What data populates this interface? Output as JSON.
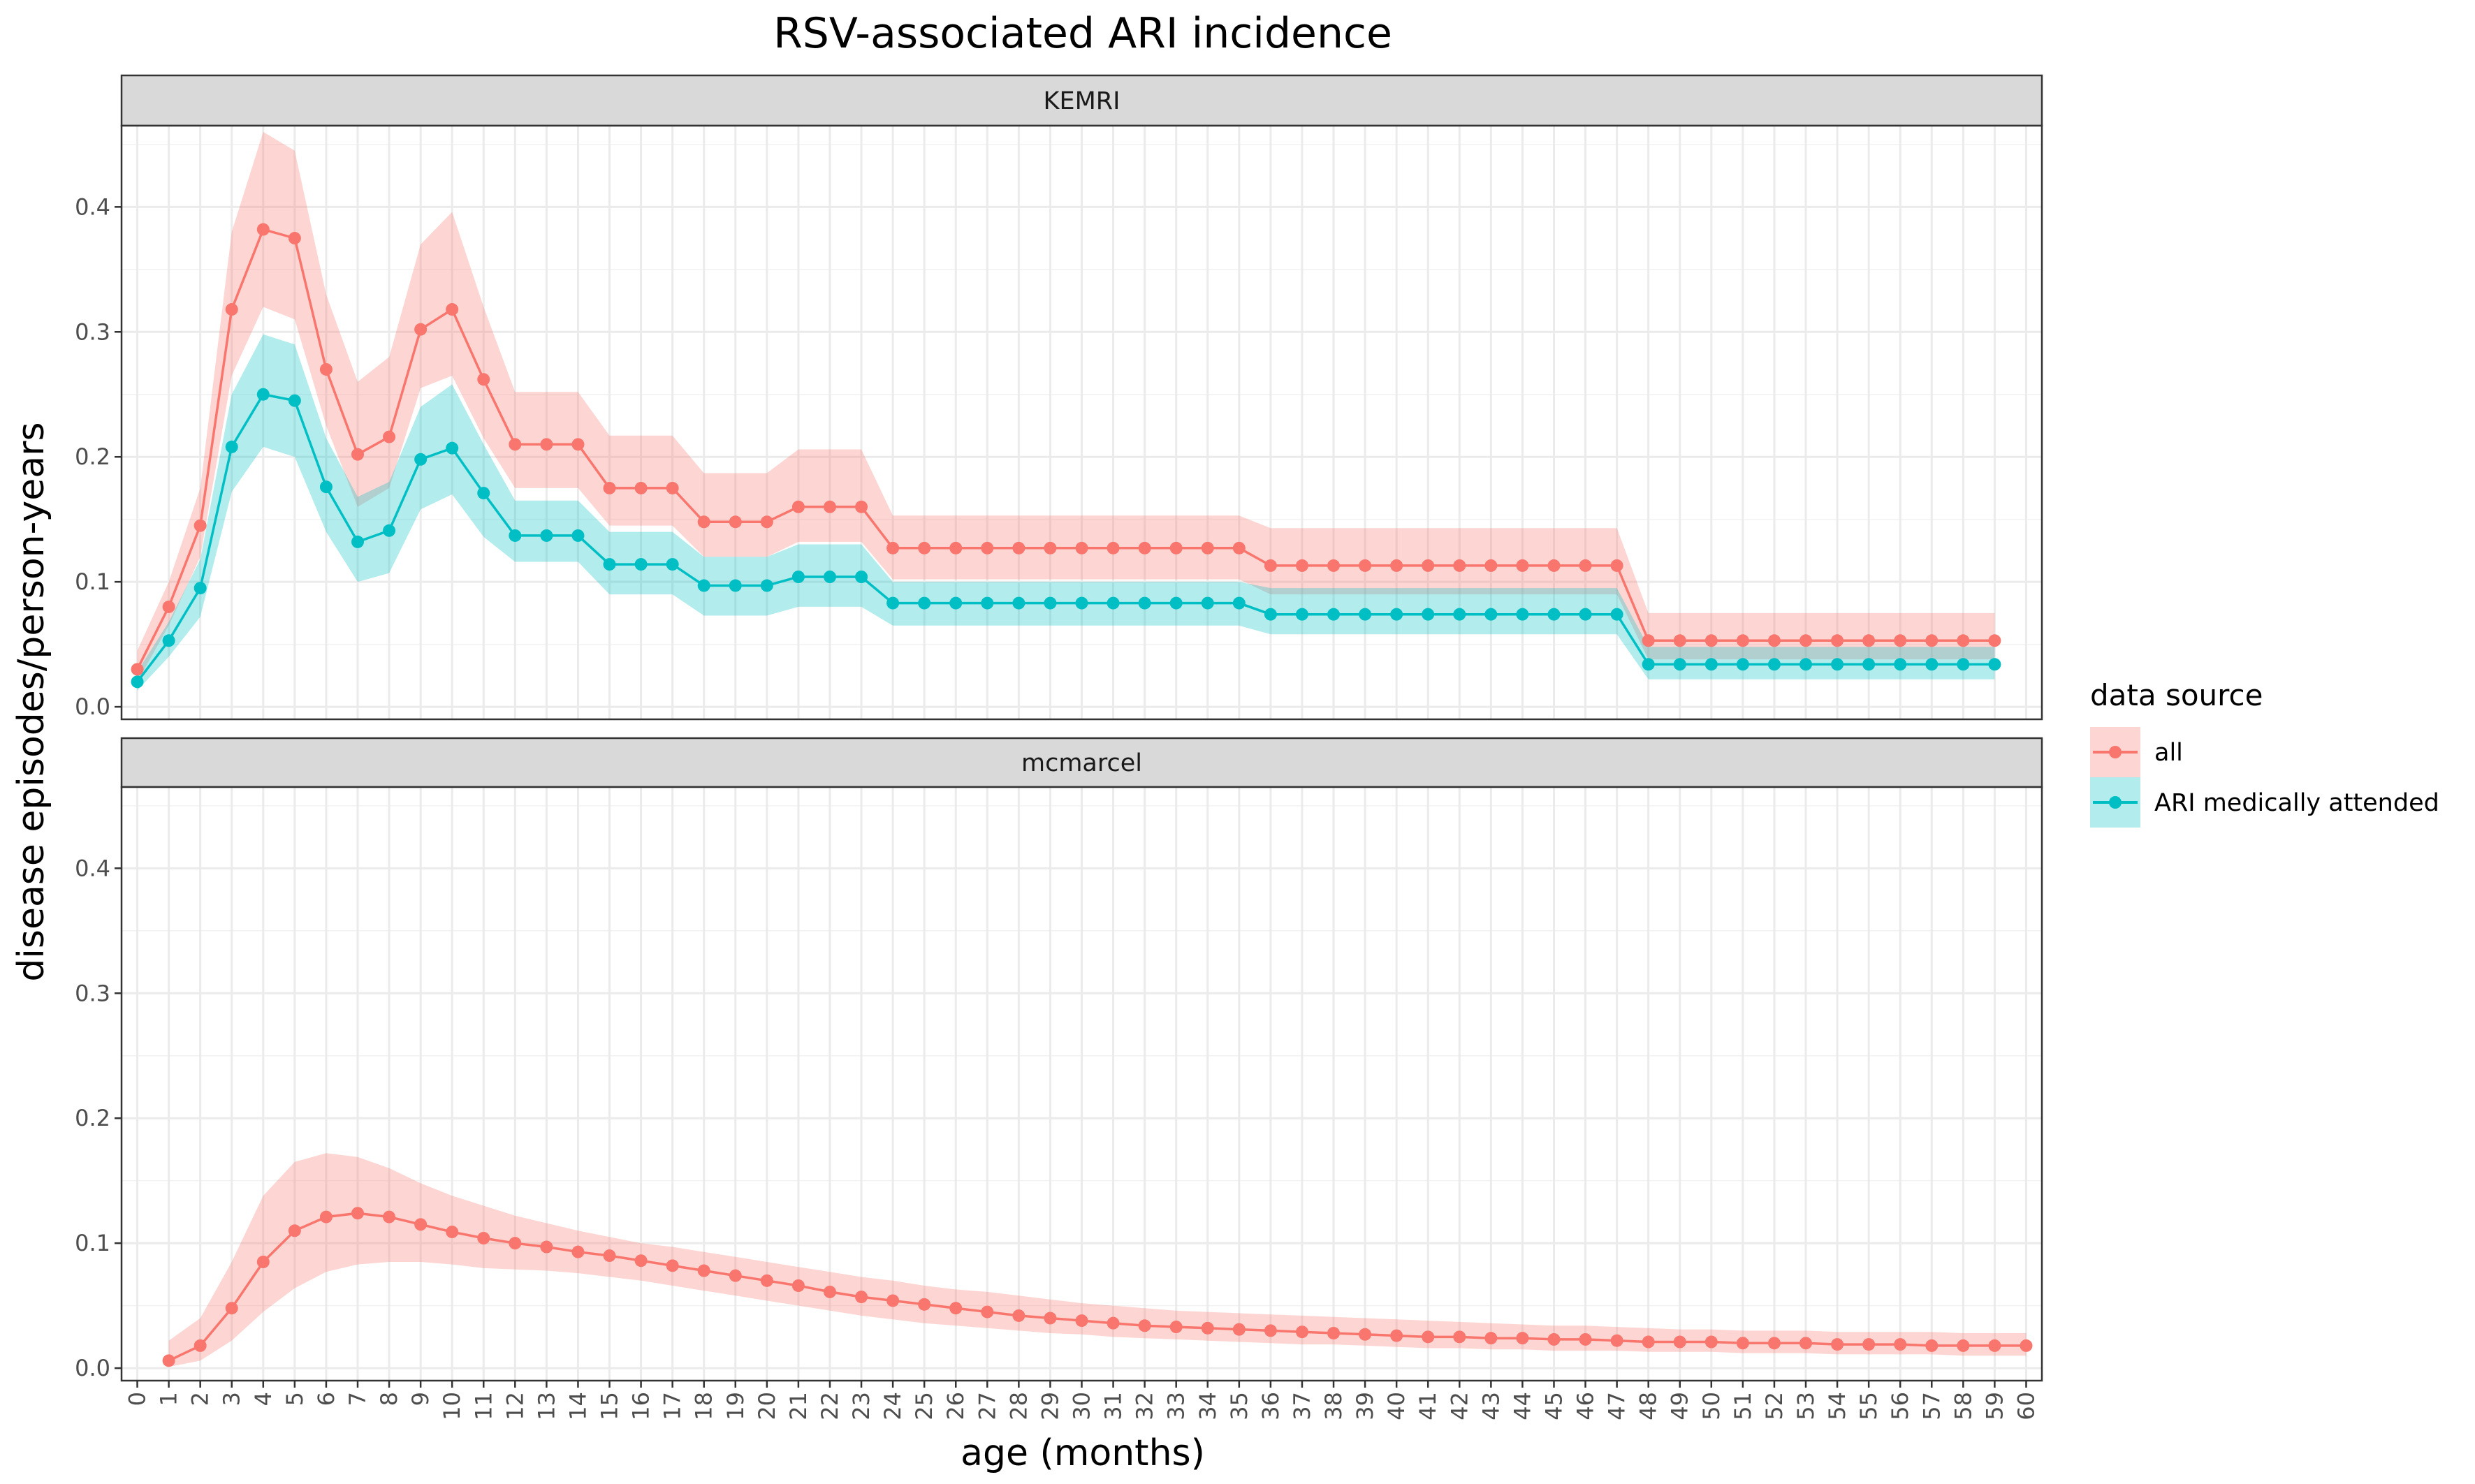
{
  "chart_data": {
    "type": "line",
    "title": "RSV-associated ARI incidence",
    "xlabel": "age (months)",
    "ylabel": "disease episodes/person-years",
    "x_ticks": [
      0,
      1,
      2,
      3,
      4,
      5,
      6,
      7,
      8,
      9,
      10,
      11,
      12,
      13,
      14,
      15,
      16,
      17,
      18,
      19,
      20,
      21,
      22,
      23,
      24,
      25,
      26,
      27,
      28,
      29,
      30,
      31,
      32,
      33,
      34,
      35,
      36,
      37,
      38,
      39,
      40,
      41,
      42,
      43,
      44,
      45,
      46,
      47,
      48,
      49,
      50,
      51,
      52,
      53,
      54,
      55,
      56,
      57,
      58,
      59,
      60
    ],
    "y_ticks": [
      0.0,
      0.1,
      0.2,
      0.3,
      0.4
    ],
    "y_tick_labels": [
      "0.0",
      "0.1",
      "0.2",
      "0.3",
      "0.4"
    ],
    "ylim": [
      -0.01,
      0.465
    ],
    "xlim": [
      -0.5,
      60.5
    ],
    "grid": true,
    "legend": {
      "title": "data source",
      "position": "right",
      "entries": [
        {
          "label": "all",
          "color": "#F8766D"
        },
        {
          "label": "ARI medically attended",
          "color": "#00BFC4"
        }
      ]
    },
    "panels": [
      {
        "label": "KEMRI",
        "series": [
          {
            "name": "all",
            "color": "#F8766D",
            "x": [
              0,
              1,
              2,
              3,
              4,
              5,
              6,
              7,
              8,
              9,
              10,
              11,
              12,
              13,
              14,
              15,
              16,
              17,
              18,
              19,
              20,
              21,
              22,
              23,
              24,
              25,
              26,
              27,
              28,
              29,
              30,
              31,
              32,
              33,
              34,
              35,
              36,
              37,
              38,
              39,
              40,
              41,
              42,
              43,
              44,
              45,
              46,
              47,
              48,
              49,
              50,
              51,
              52,
              53,
              54,
              55,
              56,
              57,
              58,
              59
            ],
            "values": [
              0.03,
              0.08,
              0.145,
              0.318,
              0.382,
              0.375,
              0.27,
              0.202,
              0.216,
              0.302,
              0.318,
              0.262,
              0.21,
              0.21,
              0.21,
              0.175,
              0.175,
              0.175,
              0.148,
              0.148,
              0.148,
              0.16,
              0.16,
              0.16,
              0.127,
              0.127,
              0.127,
              0.127,
              0.127,
              0.127,
              0.127,
              0.127,
              0.127,
              0.127,
              0.127,
              0.127,
              0.113,
              0.113,
              0.113,
              0.113,
              0.113,
              0.113,
              0.113,
              0.113,
              0.113,
              0.113,
              0.113,
              0.113,
              0.053,
              0.053,
              0.053,
              0.053,
              0.053,
              0.053,
              0.053,
              0.053,
              0.053,
              0.053,
              0.053,
              0.053
            ],
            "lower": [
              0.02,
              0.065,
              0.12,
              0.265,
              0.32,
              0.31,
              0.225,
              0.16,
              0.175,
              0.255,
              0.265,
              0.215,
              0.175,
              0.175,
              0.175,
              0.145,
              0.145,
              0.145,
              0.12,
              0.12,
              0.12,
              0.132,
              0.132,
              0.132,
              0.102,
              0.102,
              0.102,
              0.102,
              0.102,
              0.102,
              0.102,
              0.102,
              0.102,
              0.102,
              0.102,
              0.102,
              0.09,
              0.09,
              0.09,
              0.09,
              0.09,
              0.09,
              0.09,
              0.09,
              0.09,
              0.09,
              0.09,
              0.09,
              0.038,
              0.038,
              0.038,
              0.038,
              0.038,
              0.038,
              0.038,
              0.038,
              0.038,
              0.038,
              0.038,
              0.038
            ],
            "upper": [
              0.045,
              0.1,
              0.175,
              0.38,
              0.46,
              0.445,
              0.33,
              0.26,
              0.28,
              0.37,
              0.396,
              0.32,
              0.252,
              0.252,
              0.252,
              0.217,
              0.217,
              0.217,
              0.187,
              0.187,
              0.187,
              0.206,
              0.206,
              0.206,
              0.153,
              0.153,
              0.153,
              0.153,
              0.153,
              0.153,
              0.153,
              0.153,
              0.153,
              0.153,
              0.153,
              0.153,
              0.143,
              0.143,
              0.143,
              0.143,
              0.143,
              0.143,
              0.143,
              0.143,
              0.143,
              0.143,
              0.143,
              0.143,
              0.075,
              0.075,
              0.075,
              0.075,
              0.075,
              0.075,
              0.075,
              0.075,
              0.075,
              0.075,
              0.075,
              0.075
            ]
          },
          {
            "name": "ARI medically attended",
            "color": "#00BFC4",
            "x": [
              0,
              1,
              2,
              3,
              4,
              5,
              6,
              7,
              8,
              9,
              10,
              11,
              12,
              13,
              14,
              15,
              16,
              17,
              18,
              19,
              20,
              21,
              22,
              23,
              24,
              25,
              26,
              27,
              28,
              29,
              30,
              31,
              32,
              33,
              34,
              35,
              36,
              37,
              38,
              39,
              40,
              41,
              42,
              43,
              44,
              45,
              46,
              47,
              48,
              49,
              50,
              51,
              52,
              53,
              54,
              55,
              56,
              57,
              58,
              59
            ],
            "values": [
              0.02,
              0.053,
              0.095,
              0.208,
              0.25,
              0.245,
              0.176,
              0.132,
              0.141,
              0.198,
              0.207,
              0.171,
              0.137,
              0.137,
              0.137,
              0.114,
              0.114,
              0.114,
              0.097,
              0.097,
              0.097,
              0.104,
              0.104,
              0.104,
              0.083,
              0.083,
              0.083,
              0.083,
              0.083,
              0.083,
              0.083,
              0.083,
              0.083,
              0.083,
              0.083,
              0.083,
              0.074,
              0.074,
              0.074,
              0.074,
              0.074,
              0.074,
              0.074,
              0.074,
              0.074,
              0.074,
              0.074,
              0.074,
              0.034,
              0.034,
              0.034,
              0.034,
              0.034,
              0.034,
              0.034,
              0.034,
              0.034,
              0.034,
              0.034,
              0.034
            ],
            "lower": [
              0.013,
              0.04,
              0.072,
              0.172,
              0.208,
              0.2,
              0.14,
              0.1,
              0.107,
              0.158,
              0.17,
              0.136,
              0.116,
              0.116,
              0.116,
              0.09,
              0.09,
              0.09,
              0.073,
              0.073,
              0.073,
              0.08,
              0.08,
              0.08,
              0.065,
              0.065,
              0.065,
              0.065,
              0.065,
              0.065,
              0.065,
              0.065,
              0.065,
              0.065,
              0.065,
              0.065,
              0.058,
              0.058,
              0.058,
              0.058,
              0.058,
              0.058,
              0.058,
              0.058,
              0.058,
              0.058,
              0.058,
              0.058,
              0.022,
              0.022,
              0.022,
              0.022,
              0.022,
              0.022,
              0.022,
              0.022,
              0.022,
              0.022,
              0.022,
              0.022
            ],
            "upper": [
              0.028,
              0.068,
              0.118,
              0.25,
              0.298,
              0.29,
              0.215,
              0.168,
              0.18,
              0.24,
              0.258,
              0.21,
              0.165,
              0.165,
              0.165,
              0.14,
              0.14,
              0.14,
              0.12,
              0.12,
              0.12,
              0.13,
              0.13,
              0.13,
              0.1,
              0.1,
              0.1,
              0.1,
              0.1,
              0.1,
              0.1,
              0.1,
              0.1,
              0.1,
              0.1,
              0.1,
              0.095,
              0.095,
              0.095,
              0.095,
              0.095,
              0.095,
              0.095,
              0.095,
              0.095,
              0.095,
              0.095,
              0.095,
              0.048,
              0.048,
              0.048,
              0.048,
              0.048,
              0.048,
              0.048,
              0.048,
              0.048,
              0.048,
              0.048,
              0.048
            ]
          }
        ]
      },
      {
        "label": "mcmarcel",
        "series": [
          {
            "name": "all",
            "color": "#F8766D",
            "x": [
              1,
              2,
              3,
              4,
              5,
              6,
              7,
              8,
              9,
              10,
              11,
              12,
              13,
              14,
              15,
              16,
              17,
              18,
              19,
              20,
              21,
              22,
              23,
              24,
              25,
              26,
              27,
              28,
              29,
              30,
              31,
              32,
              33,
              34,
              35,
              36,
              37,
              38,
              39,
              40,
              41,
              42,
              43,
              44,
              45,
              46,
              47,
              48,
              49,
              50,
              51,
              52,
              53,
              54,
              55,
              56,
              57,
              58,
              59,
              60
            ],
            "values": [
              0.006,
              0.018,
              0.048,
              0.085,
              0.11,
              0.121,
              0.124,
              0.121,
              0.115,
              0.109,
              0.104,
              0.1,
              0.097,
              0.093,
              0.09,
              0.086,
              0.082,
              0.078,
              0.074,
              0.07,
              0.066,
              0.061,
              0.057,
              0.054,
              0.051,
              0.048,
              0.045,
              0.042,
              0.04,
              0.038,
              0.036,
              0.034,
              0.033,
              0.032,
              0.031,
              0.03,
              0.029,
              0.028,
              0.027,
              0.026,
              0.025,
              0.025,
              0.024,
              0.024,
              0.023,
              0.023,
              0.022,
              0.021,
              0.021,
              0.021,
              0.02,
              0.02,
              0.02,
              0.019,
              0.019,
              0.019,
              0.018,
              0.018,
              0.018,
              0.018
            ],
            "lower": [
              0.001,
              0.006,
              0.022,
              0.045,
              0.064,
              0.077,
              0.083,
              0.085,
              0.085,
              0.083,
              0.08,
              0.079,
              0.078,
              0.076,
              0.073,
              0.07,
              0.066,
              0.062,
              0.058,
              0.054,
              0.05,
              0.046,
              0.042,
              0.039,
              0.036,
              0.034,
              0.032,
              0.03,
              0.028,
              0.027,
              0.025,
              0.024,
              0.023,
              0.022,
              0.021,
              0.02,
              0.019,
              0.019,
              0.018,
              0.017,
              0.016,
              0.016,
              0.015,
              0.015,
              0.014,
              0.014,
              0.014,
              0.013,
              0.013,
              0.013,
              0.012,
              0.012,
              0.012,
              0.011,
              0.011,
              0.011,
              0.011,
              0.01,
              0.01,
              0.01
            ],
            "upper": [
              0.022,
              0.04,
              0.085,
              0.138,
              0.165,
              0.172,
              0.169,
              0.16,
              0.148,
              0.138,
              0.13,
              0.122,
              0.116,
              0.11,
              0.105,
              0.1,
              0.097,
              0.093,
              0.089,
              0.085,
              0.081,
              0.077,
              0.073,
              0.07,
              0.066,
              0.063,
              0.061,
              0.058,
              0.055,
              0.052,
              0.05,
              0.048,
              0.046,
              0.045,
              0.044,
              0.043,
              0.042,
              0.041,
              0.04,
              0.039,
              0.038,
              0.037,
              0.036,
              0.035,
              0.034,
              0.034,
              0.033,
              0.032,
              0.031,
              0.031,
              0.03,
              0.03,
              0.03,
              0.029,
              0.029,
              0.029,
              0.029,
              0.028,
              0.028,
              0.028
            ]
          }
        ]
      }
    ]
  }
}
